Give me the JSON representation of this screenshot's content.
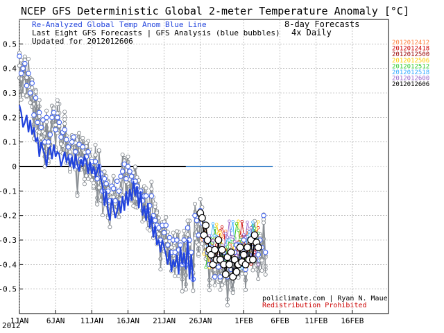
{
  "chart_data": {
    "type": "line",
    "title": "NCEP GFS Deterministic Global 2-meter Temperature Anomaly [°C]",
    "subtitle_left": [
      "Re-Analyzed Global Temp Anom Blue Line",
      "Last Eight GFS Forecasts | GFS Analysis (blue bubbles)",
      "Updated for 2012012606"
    ],
    "subtitle_right": [
      "8-day Forecasts",
      "4x Daily"
    ],
    "credit": "policlimate.com | Ryan N. Maue",
    "notice": "Redistribution Prohibited",
    "ylim": [
      -0.6,
      0.6
    ],
    "yticks": [
      "0.5",
      "0.4",
      "0.3",
      "0.2",
      "0.1",
      "0",
      "-0.1",
      "-0.2",
      "-0.3",
      "-0.4",
      "-0.5"
    ],
    "ytick_values": [
      0.5,
      0.4,
      0.3,
      0.2,
      0.1,
      0,
      -0.1,
      -0.2,
      -0.3,
      -0.4,
      -0.5
    ],
    "xlim_days": [
      1,
      52
    ],
    "xticks": [
      {
        "day": 1,
        "label": "1JAN"
      },
      {
        "day": 6,
        "label": "6JAN"
      },
      {
        "day": 11,
        "label": "11JAN"
      },
      {
        "day": 16,
        "label": "16JAN"
      },
      {
        "day": 21,
        "label": "21JAN"
      },
      {
        "day": 26,
        "label": "26JAN"
      },
      {
        "day": 32,
        "label": "1FEB"
      },
      {
        "day": 37,
        "label": "6FEB"
      },
      {
        "day": 42,
        "label": "11FEB"
      },
      {
        "day": 47,
        "label": "16FEB"
      }
    ],
    "year_label": "2012",
    "legend_position": "right",
    "legend": [
      {
        "label": "2012012412",
        "color": "#ff8040"
      },
      {
        "label": "2012012418",
        "color": "#cc0000"
      },
      {
        "label": "2012012500",
        "color": "#990000"
      },
      {
        "label": "2012012506",
        "color": "#ffcc00"
      },
      {
        "label": "2012012512",
        "color": "#33cc33"
      },
      {
        "label": "2012012518",
        "color": "#33aaff"
      },
      {
        "label": "2012012600",
        "color": "#9966cc"
      },
      {
        "label": "2012012606",
        "color": "#000000"
      }
    ],
    "reanalysis_series": {
      "name": "Re-Analyzed Global Temp Anom Blue Line",
      "color": "#2244dd",
      "x": [
        1.0,
        1.25,
        1.5,
        1.75,
        2.0,
        2.25,
        2.5,
        2.75,
        3.0,
        3.25,
        3.5,
        3.75,
        4.0,
        4.25,
        4.5,
        4.75,
        5.0,
        5.25,
        5.5,
        5.75,
        6.0,
        6.25,
        6.5,
        6.75,
        7.0,
        7.25,
        7.5,
        7.75,
        8.0,
        8.25,
        8.5,
        8.75,
        9.0,
        9.25,
        9.5,
        9.75,
        10.0,
        10.25,
        10.5,
        10.75,
        11.0,
        11.25,
        11.5,
        11.75,
        12.0,
        12.25,
        12.5,
        12.75,
        13.0,
        13.25,
        13.5,
        13.75,
        14.0,
        14.25,
        14.5,
        14.75,
        15.0,
        15.25,
        15.5,
        15.75,
        16.0,
        16.25,
        16.5,
        16.75,
        17.0,
        17.25,
        17.5,
        17.75,
        18.0,
        18.25,
        18.5,
        18.75,
        19.0,
        19.25,
        19.5,
        19.75,
        20.0,
        20.25,
        20.5,
        20.75,
        21.0,
        21.25,
        21.5,
        21.75,
        22.0,
        22.25,
        22.5,
        22.75,
        23.0,
        23.25,
        23.5,
        23.75,
        24.0,
        24.25,
        24.5,
        24.75,
        25.0
      ],
      "values": [
        0.25,
        0.22,
        0.16,
        0.18,
        0.21,
        0.14,
        0.19,
        0.13,
        0.16,
        0.1,
        0.12,
        0.04,
        0.1,
        0.07,
        0.05,
        0.0,
        0.07,
        0.08,
        0.03,
        0.09,
        0.04,
        0.06,
        0.05,
        0.0,
        0.03,
        0.06,
        0.02,
        0.04,
        0.0,
        0.04,
        -0.01,
        0.05,
        0.01,
        -0.02,
        0.03,
        0.0,
        0.04,
        0.02,
        -0.03,
        0.02,
        -0.03,
        0.0,
        -0.04,
        -0.02,
        0.01,
        -0.05,
        -0.08,
        -0.16,
        -0.1,
        -0.18,
        -0.22,
        -0.13,
        -0.17,
        -0.21,
        -0.18,
        -0.14,
        -0.19,
        -0.12,
        -0.18,
        -0.1,
        -0.16,
        -0.09,
        -0.14,
        -0.06,
        -0.12,
        -0.08,
        -0.17,
        -0.1,
        -0.2,
        -0.16,
        -0.22,
        -0.15,
        -0.25,
        -0.2,
        -0.29,
        -0.24,
        -0.32,
        -0.3,
        -0.35,
        -0.3,
        -0.33,
        -0.36,
        -0.4,
        -0.34,
        -0.43,
        -0.38,
        -0.41,
        -0.36,
        -0.44,
        -0.33,
        -0.4,
        -0.35,
        -0.42,
        -0.3,
        -0.46,
        -0.36,
        -0.47
      ]
    },
    "analysis_bubbles": {
      "name": "GFS Analysis (blue bubbles)",
      "color": "#4466ee",
      "x": [
        1.0,
        1.25,
        1.5,
        1.75,
        2.0,
        2.25,
        2.5,
        2.75,
        3.0,
        3.25,
        3.5,
        3.75,
        4.0,
        4.25,
        4.5,
        4.75,
        5.0,
        5.25,
        5.5,
        5.75,
        6.0,
        6.25,
        6.5,
        6.75,
        7.0,
        7.25,
        7.5,
        7.75,
        8.0,
        8.25,
        8.5,
        8.75,
        9.0,
        9.25,
        9.5,
        9.75,
        10.0,
        10.25,
        10.5,
        10.75,
        11.0,
        11.25,
        11.5,
        11.75,
        12.0,
        12.25,
        12.5,
        12.75,
        13.0,
        13.25,
        13.5,
        13.75,
        14.0,
        14.25,
        14.5,
        14.75,
        15.0,
        15.25,
        15.5,
        15.75,
        16.0,
        16.25,
        16.5,
        16.75,
        17.0,
        17.25,
        17.5,
        17.75,
        18.0,
        18.25,
        18.5,
        18.75,
        19.0,
        19.25,
        19.5,
        19.75,
        20.0,
        20.25,
        20.5,
        20.75,
        21.0,
        21.25,
        21.5,
        21.75,
        22.0,
        22.25,
        22.5,
        22.75,
        23.0,
        23.25,
        23.5,
        23.75,
        24.0,
        24.25,
        24.5,
        24.75,
        25.0,
        25.25,
        25.5,
        25.75,
        26.0,
        26.25,
        26.5,
        26.75,
        27.0,
        27.25,
        27.5,
        27.75,
        28.0,
        28.25,
        28.5,
        28.75,
        29.0,
        29.25,
        29.5,
        29.75,
        30.0,
        30.25,
        30.5,
        30.75,
        31.0,
        31.25,
        31.5,
        31.75,
        32.0,
        32.25,
        32.5,
        32.75,
        33.0,
        33.25,
        33.5,
        33.75,
        34.0,
        34.25,
        34.5,
        34.75,
        35.0
      ],
      "values": [
        0.45,
        0.38,
        0.4,
        0.42,
        0.33,
        0.38,
        0.3,
        0.34,
        0.21,
        0.28,
        0.18,
        0.22,
        0.16,
        0.19,
        0.1,
        0.2,
        0.1,
        0.13,
        0.2,
        0.22,
        0.15,
        0.2,
        0.18,
        0.12,
        0.14,
        0.15,
        0.11,
        0.08,
        0.04,
        0.1,
        0.12,
        0.06,
        0.0,
        0.09,
        0.03,
        0.08,
        0.02,
        0.04,
        0.06,
        0.0,
        0.02,
        -0.02,
        0.02,
        -0.05,
        0.0,
        -0.03,
        -0.1,
        -0.05,
        -0.07,
        -0.1,
        -0.14,
        -0.08,
        -0.09,
        -0.14,
        -0.06,
        -0.1,
        -0.04,
        -0.02,
        0.01,
        -0.05,
        0.0,
        -0.02,
        -0.04,
        -0.06,
        -0.06,
        -0.08,
        -0.12,
        -0.1,
        -0.14,
        -0.12,
        -0.12,
        -0.18,
        -0.16,
        -0.12,
        -0.2,
        -0.22,
        -0.24,
        -0.25,
        -0.3,
        -0.24,
        -0.27,
        -0.24,
        -0.32,
        -0.29,
        -0.35,
        -0.3,
        -0.35,
        -0.3,
        -0.34,
        -0.32,
        -0.4,
        -0.3,
        -0.4,
        -0.25,
        -0.3,
        -0.35,
        -0.46,
        -0.2,
        -0.22,
        -0.28,
        -0.18,
        -0.23,
        -0.28,
        -0.3,
        -0.35,
        -0.4,
        -0.33,
        -0.38,
        -0.45,
        -0.38,
        -0.41,
        -0.45,
        -0.38,
        -0.35,
        -0.4,
        -0.45,
        -0.38,
        -0.42,
        -0.45,
        -0.35,
        -0.32,
        -0.38,
        -0.32,
        -0.34,
        -0.3,
        -0.42,
        -0.33,
        -0.36,
        -0.3,
        -0.33,
        -0.28,
        -0.32,
        -0.36,
        -0.3,
        -0.33,
        -0.2,
        -0.35
      ]
    },
    "latest_forecast": {
      "name": "2012012606",
      "color": "#000000",
      "x": [
        26.0,
        26.25,
        26.5,
        26.75,
        27.0,
        27.25,
        27.5,
        27.75,
        28.0,
        28.25,
        28.5,
        28.75,
        29.0,
        29.25,
        29.5,
        29.75,
        30.0,
        30.25,
        30.5,
        30.75,
        31.0,
        31.25,
        31.5,
        31.75,
        32.0,
        32.25,
        32.5,
        32.75,
        33.0,
        33.25,
        33.5,
        33.75,
        34.0
      ],
      "values": [
        -0.19,
        -0.21,
        -0.28,
        -0.24,
        -0.3,
        -0.34,
        -0.36,
        -0.4,
        -0.34,
        -0.38,
        -0.3,
        -0.38,
        -0.34,
        -0.4,
        -0.44,
        -0.37,
        -0.4,
        -0.35,
        -0.45,
        -0.38,
        -0.43,
        -0.4,
        -0.33,
        -0.39,
        -0.36,
        -0.4,
        -0.33,
        -0.38,
        -0.3,
        -0.38,
        -0.28,
        -0.31,
        -0.33
      ]
    }
  }
}
